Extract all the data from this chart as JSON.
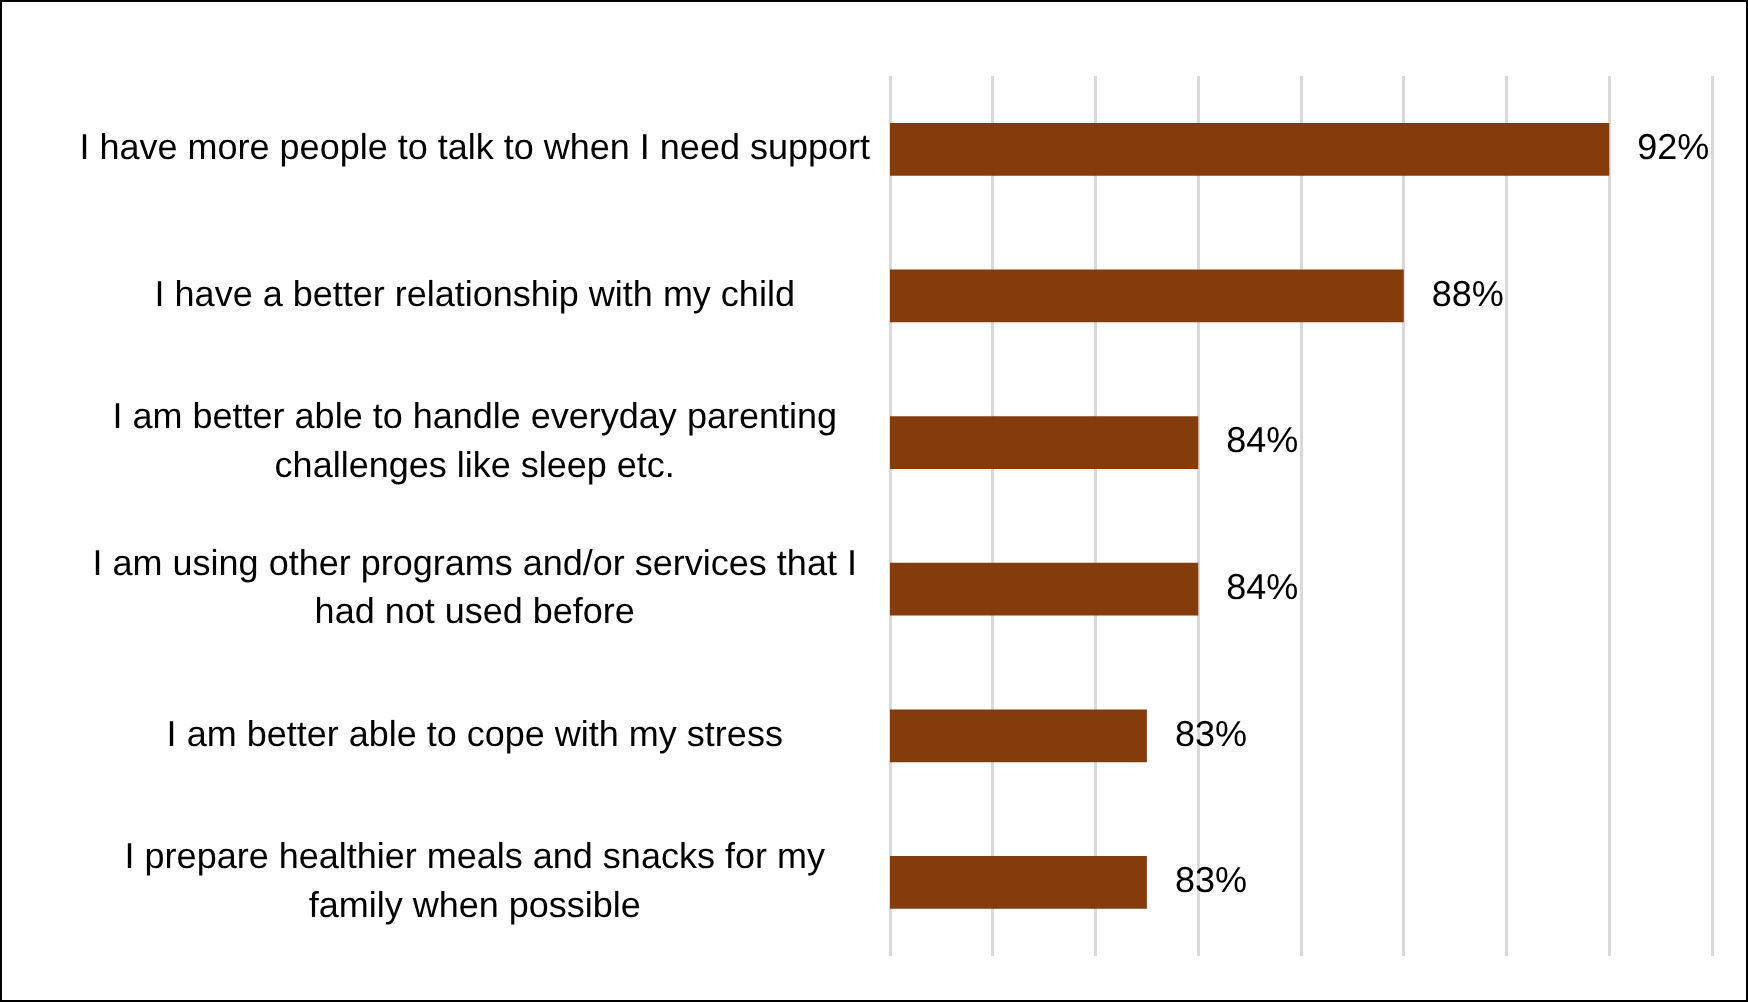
{
  "chart_data": {
    "type": "bar",
    "orientation": "horizontal",
    "categories": [
      "I have more people to talk to when I need support",
      "I have a better relationship with my child",
      "I am better able to handle everyday parenting challenges like sleep etc.",
      "I am using other programs and/or services that I had not used before",
      "I am better able to cope with my stress",
      "I prepare healthier meals and snacks for my family when possible"
    ],
    "values": [
      92,
      88,
      84,
      84,
      83,
      83
    ],
    "value_labels": [
      "92%",
      "88%",
      "84%",
      "84%",
      "83%",
      "83%"
    ],
    "color": "#843c0c",
    "xlim": [
      78,
      94
    ],
    "xticks": [
      {
        "value": 78,
        "label": null
      },
      {
        "value": 80,
        "label": null
      },
      {
        "value": 82,
        "label": null
      },
      {
        "value": 84,
        "label": null
      },
      {
        "value": 86,
        "label": null
      },
      {
        "value": 88,
        "label": null
      },
      {
        "value": 90,
        "label": null
      },
      {
        "value": 92,
        "label": null
      },
      {
        "value": 94,
        "label": null
      }
    ],
    "grid": "x",
    "tick_labels": "y",
    "legend": false
  }
}
